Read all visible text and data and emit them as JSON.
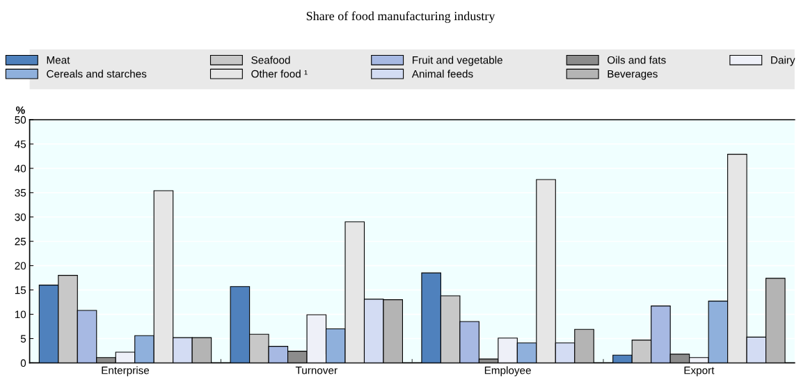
{
  "chart_data": {
    "type": "bar",
    "title": "Share of food manufacturing industry",
    "ylabel": "%",
    "categories": [
      "Enterprise",
      "Turnover",
      "Employee",
      "Export"
    ],
    "series": [
      {
        "name": "Meat",
        "color": "#4f81bd",
        "values": [
          16.0,
          15.7,
          18.5,
          1.6
        ]
      },
      {
        "name": "Seafood",
        "color": "#c8c8c8",
        "values": [
          18.0,
          5.9,
          13.8,
          4.7
        ]
      },
      {
        "name": "Fruit and vegetable",
        "color": "#a7b9e3",
        "values": [
          10.8,
          3.4,
          8.5,
          11.7
        ]
      },
      {
        "name": "Oils and fats",
        "color": "#8c8c8c",
        "values": [
          1.1,
          2.4,
          0.8,
          1.8
        ]
      },
      {
        "name": "Dairy",
        "color": "#eef0f8",
        "values": [
          2.2,
          9.9,
          5.1,
          1.1
        ]
      },
      {
        "name": "Cereals and starches",
        "color": "#8fb0dc",
        "values": [
          5.6,
          7.0,
          4.1,
          12.7
        ]
      },
      {
        "name": "Other food ¹",
        "color": "#e6e6e6",
        "values": [
          35.4,
          29.0,
          37.7,
          42.9
        ]
      },
      {
        "name": "Animal feeds",
        "color": "#d3dcf3",
        "values": [
          5.2,
          13.1,
          4.1,
          5.3
        ]
      },
      {
        "name": "Beverages",
        "color": "#b4b4b4",
        "values": [
          5.2,
          13.0,
          6.9,
          17.4
        ]
      }
    ],
    "ylim": [
      0,
      50
    ],
    "yticks": [
      0,
      5,
      10,
      15,
      20,
      25,
      30,
      35,
      40,
      45,
      50
    ],
    "grid": "y",
    "legend": "top"
  }
}
